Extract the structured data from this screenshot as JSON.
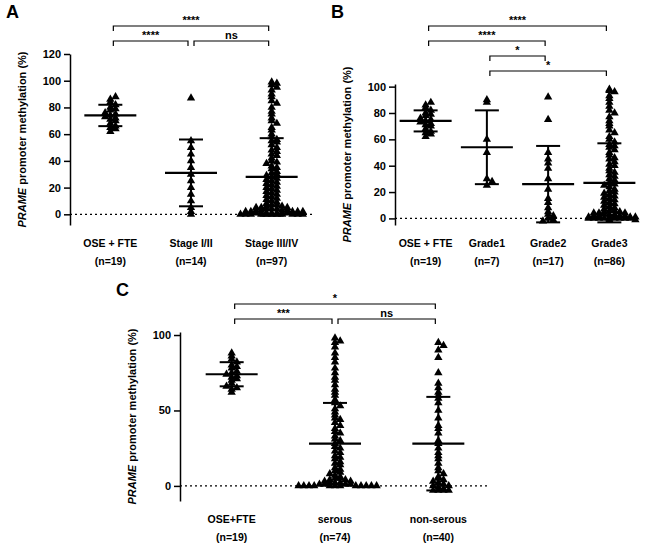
{
  "chart_data": [
    {
      "type": "scatter",
      "title": "A",
      "ylabel": "PRAME promoter methylation (%)",
      "categories": [
        "OSE + FTE",
        "Stage I/II",
        "Stage III/IV"
      ],
      "sample_sizes": [
        "(n=19)",
        "(n=14)",
        "(n=97)"
      ],
      "marker": "triangle",
      "color": "#000000",
      "ylim": [
        -8,
        120
      ],
      "yticks": [
        0,
        20,
        40,
        60,
        80,
        100,
        120
      ],
      "reference_line": 0,
      "values": [
        [
          62,
          64,
          65,
          66,
          68,
          70,
          71,
          72,
          73,
          74,
          75,
          76,
          78,
          79,
          80,
          82,
          84,
          86,
          88
        ],
        [
          87,
          55,
          50,
          45,
          40,
          35,
          30,
          25,
          20,
          15,
          10,
          5,
          2,
          0
        ],
        [
          99,
          98,
          97,
          95,
          93,
          90,
          88,
          85,
          83,
          80,
          77,
          75,
          72,
          70,
          68,
          65,
          63,
          60,
          58,
          56,
          55,
          54,
          52,
          50,
          48,
          47,
          45,
          44,
          42,
          40,
          39,
          38,
          36,
          35,
          34,
          32,
          31,
          30,
          29,
          28,
          27,
          26,
          25,
          24,
          23,
          22,
          21,
          20,
          19,
          18,
          17,
          16,
          15,
          14,
          13,
          12,
          11,
          10,
          9,
          8,
          7,
          7,
          6,
          6,
          5,
          5,
          5,
          4,
          4,
          4,
          3,
          3,
          3,
          3,
          2,
          2,
          2,
          2,
          2,
          1,
          1,
          1,
          1,
          1,
          1,
          1,
          0,
          0,
          0,
          0,
          0,
          0,
          0,
          0,
          0,
          0,
          0
        ]
      ],
      "means": [
        74,
        31,
        28
      ],
      "errors": [
        8,
        25,
        29
      ],
      "comparisons": [
        {
          "from": "OSE + FTE",
          "to": "Stage III/IV",
          "label": "****"
        },
        {
          "from": "OSE + FTE",
          "to": "Stage I/II",
          "label": "****"
        },
        {
          "from": "Stage I/II",
          "to": "Stage III/IV",
          "label": "ns"
        }
      ]
    },
    {
      "type": "scatter",
      "title": "B",
      "ylabel": "PRAME promoter methylation (%)",
      "categories": [
        "OSE + FTE",
        "Grade1",
        "Grade2",
        "Grade3"
      ],
      "sample_sizes": [
        "(n=19)",
        "(n=7)",
        "(n=17)",
        "(n=86)"
      ],
      "marker": "triangle",
      "color": "#000000",
      "ylim": [
        -5,
        102
      ],
      "yticks": [
        0,
        20,
        40,
        60,
        80,
        100
      ],
      "reference_line": 0,
      "values": [
        [
          62,
          64,
          65,
          66,
          68,
          70,
          71,
          72,
          73,
          74,
          75,
          76,
          78,
          79,
          80,
          82,
          84,
          86,
          88
        ],
        [
          90,
          88,
          60,
          50,
          30,
          28,
          25
        ],
        [
          92,
          75,
          50,
          45,
          42,
          38,
          30,
          22,
          15,
          12,
          8,
          5,
          3,
          2,
          0,
          -1,
          -2
        ],
        [
          98,
          97,
          96,
          93,
          91,
          88,
          85,
          82,
          80,
          77,
          74,
          72,
          70,
          67,
          65,
          62,
          60,
          58,
          56,
          55,
          54,
          52,
          50,
          48,
          46,
          45,
          43,
          41,
          40,
          38,
          36,
          35,
          33,
          32,
          30,
          29,
          27,
          26,
          25,
          24,
          22,
          21,
          20,
          19,
          18,
          17,
          16,
          15,
          14,
          13,
          12,
          11,
          10,
          9,
          8,
          7,
          6,
          6,
          5,
          5,
          4,
          4,
          4,
          3,
          3,
          3,
          2,
          2,
          2,
          2,
          1,
          1,
          1,
          1,
          1,
          0,
          0,
          0,
          0,
          0,
          0,
          0,
          0,
          0,
          -1,
          -1
        ]
      ],
      "means": [
        74,
        54,
        26,
        27
      ],
      "errors": [
        8,
        28,
        29,
        30
      ],
      "comparisons": [
        {
          "from": "OSE + FTE",
          "to": "Grade3",
          "label": "****"
        },
        {
          "from": "OSE + FTE",
          "to": "Grade2",
          "label": "****"
        },
        {
          "from": "Grade1",
          "to": "Grade2",
          "label": "*"
        },
        {
          "from": "Grade1",
          "to": "Grade3",
          "label": "*"
        }
      ]
    },
    {
      "type": "scatter",
      "title": "C",
      "ylabel": "PRAME promoter methylation (%)",
      "categories": [
        "OSE+FTE",
        "serous",
        "non-serous"
      ],
      "sample_sizes": [
        "(n=19)",
        "(n=74)",
        "(n=40)"
      ],
      "marker": "triangle",
      "color": "#000000",
      "ylim": [
        -10,
        102
      ],
      "yticks": [
        0,
        50,
        100
      ],
      "reference_line": 0,
      "values": [
        [
          62,
          64,
          65,
          66,
          68,
          70,
          71,
          72,
          73,
          74,
          75,
          76,
          78,
          79,
          80,
          82,
          84,
          86,
          88
        ],
        [
          98,
          96,
          95,
          92,
          88,
          85,
          82,
          78,
          75,
          72,
          70,
          67,
          64,
          62,
          60,
          57,
          55,
          53,
          51,
          49,
          47,
          45,
          44,
          42,
          40,
          38,
          36,
          35,
          33,
          31,
          30,
          28,
          26,
          25,
          23,
          22,
          20,
          19,
          18,
          16,
          15,
          14,
          12,
          11,
          10,
          9,
          8,
          7,
          6,
          5,
          5,
          4,
          4,
          3,
          3,
          2,
          2,
          2,
          1,
          1,
          1,
          1,
          0,
          0,
          0,
          0,
          0,
          0,
          0,
          0,
          0,
          0,
          0,
          0
        ],
        [
          95,
          93,
          90,
          85,
          75,
          68,
          65,
          62,
          60,
          58,
          55,
          50,
          45,
          40,
          38,
          35,
          30,
          28,
          25,
          22,
          20,
          18,
          15,
          12,
          10,
          8,
          6,
          5,
          4,
          3,
          2,
          1,
          0,
          0,
          -1,
          -2,
          -3,
          -3,
          -3,
          -3
        ]
      ],
      "means": [
        74,
        28,
        28
      ],
      "errors": [
        8,
        27,
        31
      ],
      "comparisons": [
        {
          "from": "OSE+FTE",
          "to": "non-serous",
          "label": "*"
        },
        {
          "from": "OSE+FTE",
          "to": "serous",
          "label": "***"
        },
        {
          "from": "serous",
          "to": "non-serous",
          "label": "ns"
        }
      ]
    }
  ]
}
